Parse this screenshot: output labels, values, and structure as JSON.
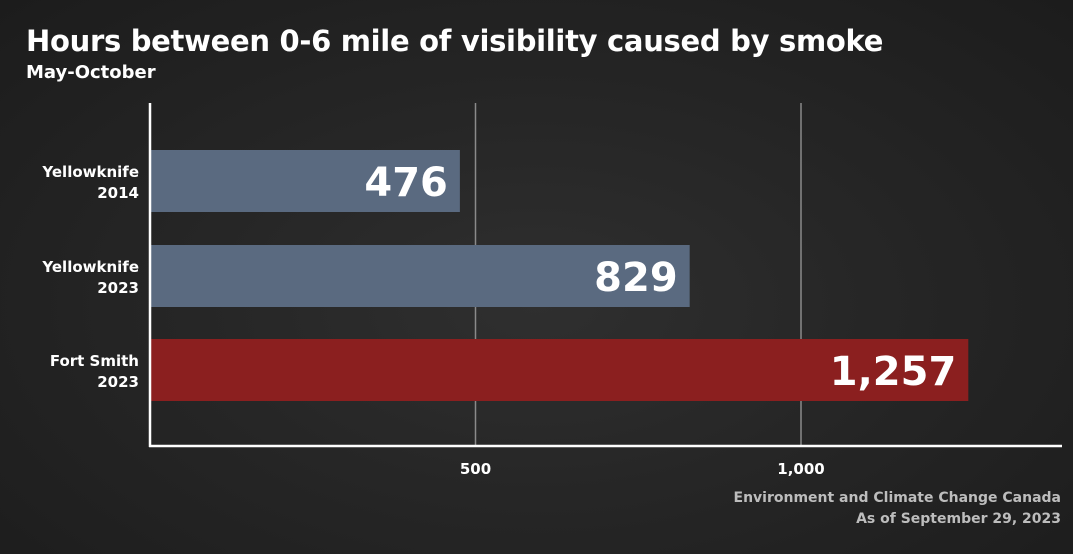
{
  "header": {
    "title": "Hours between 0-6 mile of visibility caused by smoke",
    "subtitle": "May-October"
  },
  "source": {
    "line1": "Environment and Climate Change Canada",
    "line2": "As of September 29, 2023"
  },
  "colors": {
    "bar_default": "#5a6a80",
    "bar_highlight": "#8b1f1f",
    "gridline": "#8a8a8a",
    "axis": "#ffffff"
  },
  "chart_data": {
    "type": "bar",
    "orientation": "horizontal",
    "categories": [
      [
        "Yellowknife",
        "2014"
      ],
      [
        "Yellowknife",
        "2023"
      ],
      [
        "Fort Smith",
        "2023"
      ]
    ],
    "values": [
      476,
      829,
      1257
    ],
    "value_labels": [
      "476",
      "829",
      "1,257"
    ],
    "highlight_index": 2,
    "title": "Hours between 0-6 mile of visibility caused by smoke",
    "subtitle": "May-October",
    "xlabel": "",
    "ylabel": "",
    "xlim": [
      0,
      1400
    ],
    "xticks": [
      500,
      1000
    ],
    "xtick_labels": [
      "500",
      "1,000"
    ],
    "grid": true
  }
}
